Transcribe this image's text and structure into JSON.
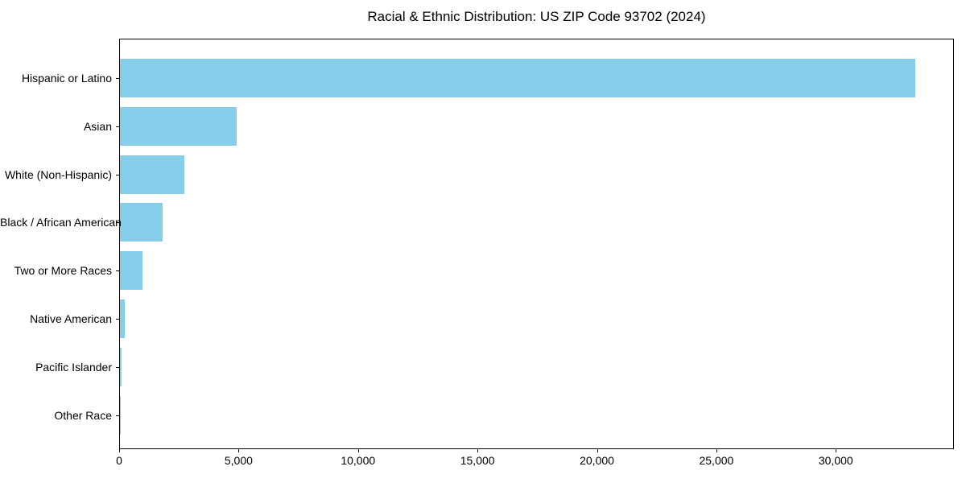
{
  "chart_data": {
    "type": "bar",
    "orientation": "horizontal",
    "title": "Racial & Ethnic Distribution: US ZIP Code 93702 (2024)",
    "categories": [
      "Hispanic or Latino",
      "Asian",
      "White (Non-Hispanic)",
      "Black / African American",
      "Two or More Races",
      "Native American",
      "Pacific Islander",
      "Other Race"
    ],
    "values": [
      33280,
      4900,
      2690,
      1800,
      930,
      200,
      80,
      25
    ],
    "xlabel": "",
    "ylabel": "",
    "xlim": [
      0,
      34944
    ],
    "x_ticks": [
      0,
      5000,
      10000,
      15000,
      20000,
      25000,
      30000
    ],
    "x_tick_labels": [
      "0",
      "5,000",
      "10,000",
      "15,000",
      "20,000",
      "25,000",
      "30,000"
    ],
    "bar_color": "#87CEEB",
    "axis_color": "#000000",
    "text_color": "#000000",
    "grid": false,
    "legend": "none",
    "value_labels": "none"
  }
}
